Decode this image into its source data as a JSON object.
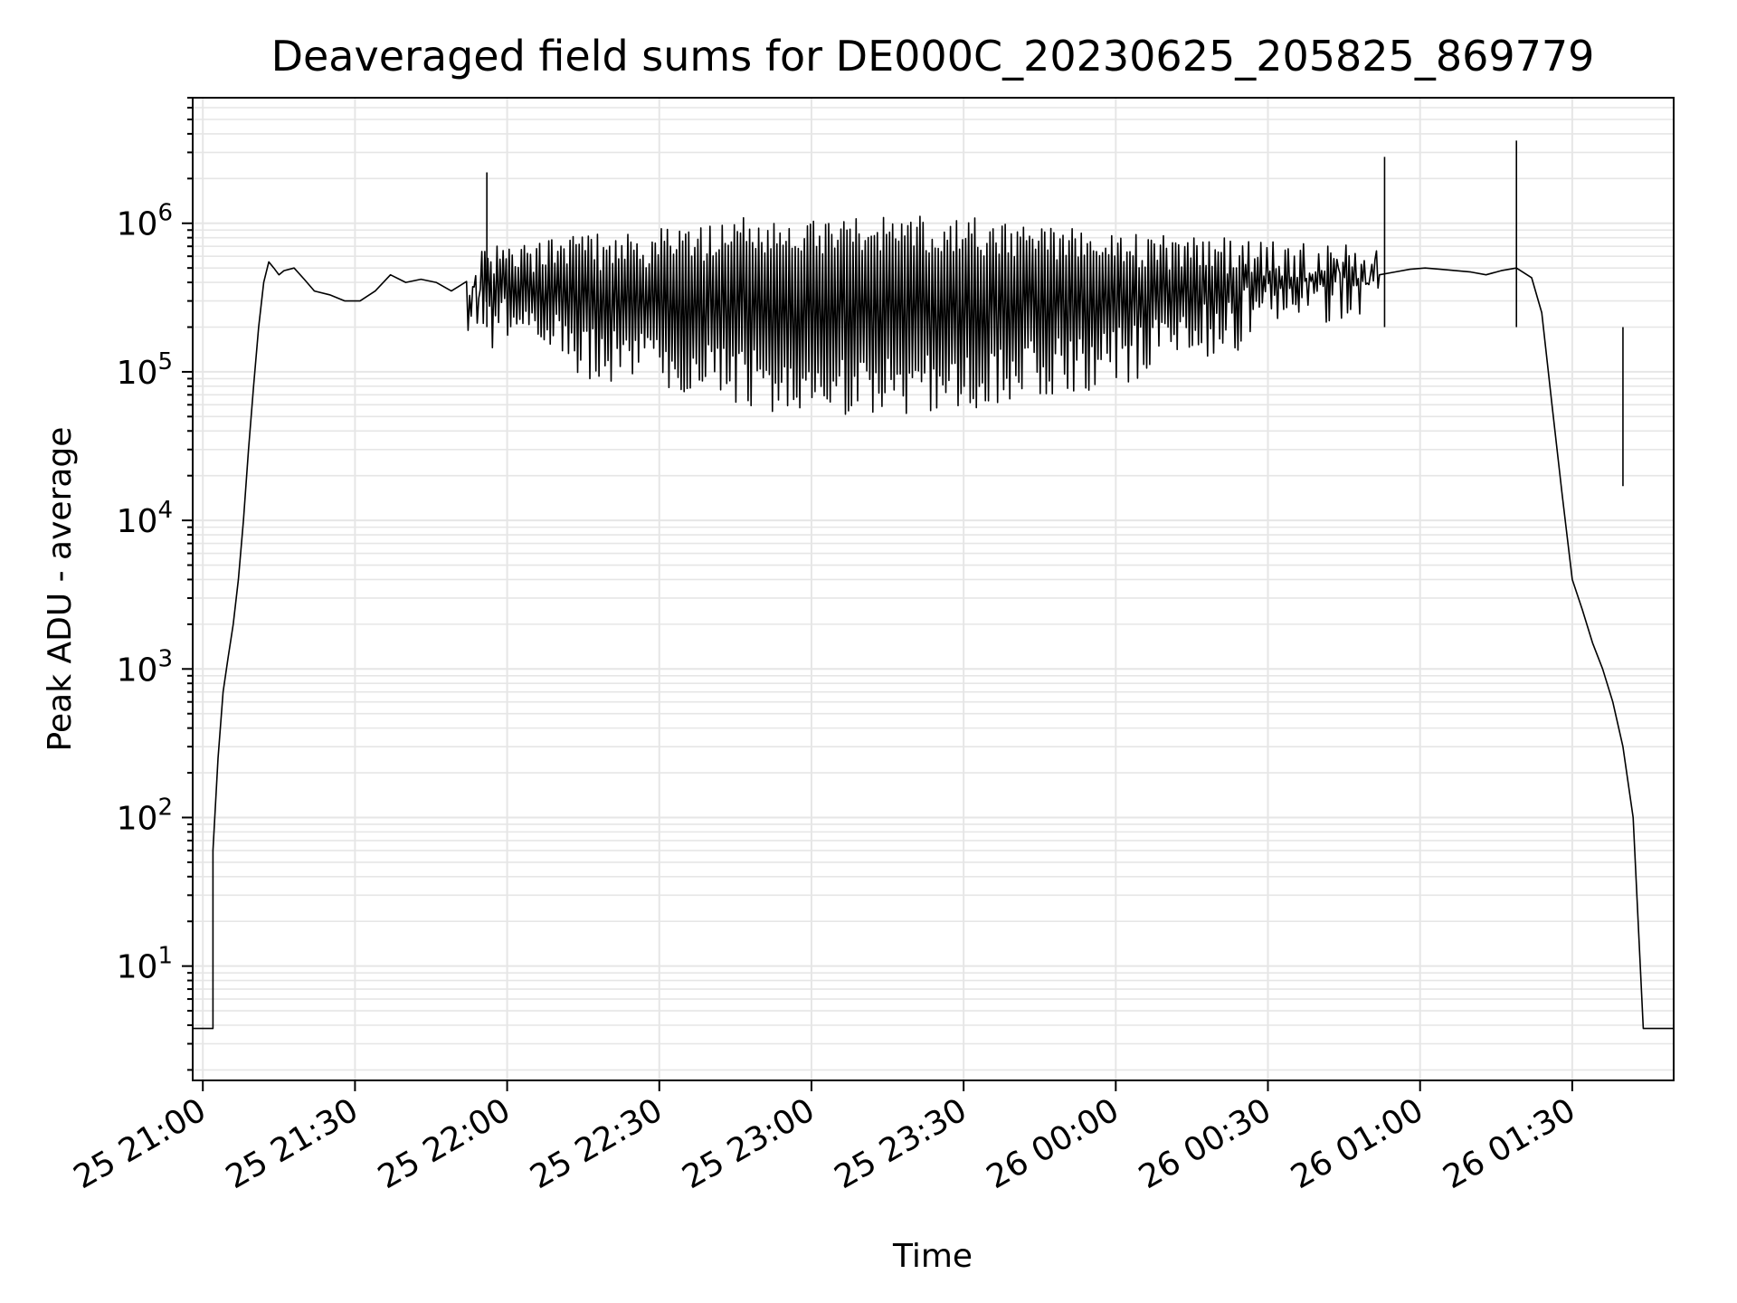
{
  "chart_data": {
    "type": "line",
    "title": "Deaveraged field sums for DE000C_20230625_205825_869779",
    "xlabel": "Time",
    "ylabel": "Peak ADU - average",
    "y_scale": "log",
    "ylim": [
      1.7,
      7000000
    ],
    "xlim": [
      "2023-06-25 20:58",
      "2023-06-26 01:50"
    ],
    "grid": true,
    "line_color": "#000000",
    "grid_color": "#e6e6e6",
    "x_ticks": [
      {
        "value": "2023-06-25 21:00",
        "label": "25 21:00"
      },
      {
        "value": "2023-06-25 21:30",
        "label": "25 21:30"
      },
      {
        "value": "2023-06-25 22:00",
        "label": "25 22:00"
      },
      {
        "value": "2023-06-25 22:30",
        "label": "25 22:30"
      },
      {
        "value": "2023-06-25 23:00",
        "label": "25 23:00"
      },
      {
        "value": "2023-06-25 23:30",
        "label": "25 23:30"
      },
      {
        "value": "2023-06-26 00:00",
        "label": "26 00:00"
      },
      {
        "value": "2023-06-26 00:30",
        "label": "26 00:30"
      },
      {
        "value": "2023-06-26 01:00",
        "label": "26 01:00"
      },
      {
        "value": "2023-06-26 01:30",
        "label": "26 01:30"
      }
    ],
    "y_ticks": [
      {
        "value": 10,
        "base": "10",
        "exp": "1"
      },
      {
        "value": 100,
        "base": "10",
        "exp": "2"
      },
      {
        "value": 1000,
        "base": "10",
        "exp": "3"
      },
      {
        "value": 10000,
        "base": "10",
        "exp": "4"
      },
      {
        "value": 100000,
        "base": "10",
        "exp": "5"
      },
      {
        "value": 1000000,
        "base": "10",
        "exp": "6"
      }
    ],
    "series": [
      {
        "x": [
          "2023-06-25 20:58",
          "2023-06-25 21:02",
          "2023-06-25 21:02",
          "2023-06-25 21:03",
          "2023-06-25 21:04",
          "2023-06-25 21:05",
          "2023-06-25 21:06",
          "2023-06-25 21:07",
          "2023-06-25 21:08",
          "2023-06-25 21:09",
          "2023-06-25 21:10",
          "2023-06-25 21:11",
          "2023-06-25 21:12",
          "2023-06-25 21:13",
          "2023-06-25 21:14",
          "2023-06-25 21:15",
          "2023-06-25 21:16",
          "2023-06-25 21:18",
          "2023-06-25 21:20",
          "2023-06-25 21:22",
          "2023-06-25 21:25",
          "2023-06-25 21:28",
          "2023-06-25 21:31",
          "2023-06-25 21:34",
          "2023-06-25 21:37",
          "2023-06-25 21:40",
          "2023-06-25 21:43",
          "2023-06-25 21:46",
          "2023-06-25 21:49",
          "2023-06-25 21:52",
          "2023-06-25 21:55",
          "2023-06-25 21:58",
          "2023-06-25 22:01",
          "2023-06-25 22:04",
          "2023-06-25 22:07",
          "2023-06-25 22:10",
          "2023-06-25 22:13",
          "2023-06-25 22:16",
          "2023-06-25 22:19",
          "2023-06-25 22:22",
          "2023-06-25 22:25",
          "2023-06-25 22:28",
          "2023-06-25 22:31",
          "2023-06-25 22:34",
          "2023-06-25 22:37",
          "2023-06-25 22:40",
          "2023-06-25 22:43",
          "2023-06-25 22:46",
          "2023-06-25 22:49",
          "2023-06-25 22:52",
          "2023-06-25 22:55",
          "2023-06-25 22:58",
          "2023-06-25 23:01",
          "2023-06-25 23:04",
          "2023-06-25 23:07",
          "2023-06-25 23:10",
          "2023-06-25 23:13",
          "2023-06-25 23:16",
          "2023-06-25 23:19",
          "2023-06-25 23:22",
          "2023-06-25 23:25",
          "2023-06-25 23:28",
          "2023-06-25 23:31",
          "2023-06-25 23:34",
          "2023-06-25 23:37",
          "2023-06-25 23:40",
          "2023-06-25 23:43",
          "2023-06-25 23:46",
          "2023-06-25 23:49",
          "2023-06-25 23:52",
          "2023-06-25 23:55",
          "2023-06-25 23:58",
          "2023-06-26 00:01",
          "2023-06-26 00:04",
          "2023-06-26 00:07",
          "2023-06-26 00:10",
          "2023-06-26 00:13",
          "2023-06-26 00:16",
          "2023-06-26 00:19",
          "2023-06-26 00:22",
          "2023-06-26 00:25",
          "2023-06-26 00:28",
          "2023-06-26 00:31",
          "2023-06-26 00:34",
          "2023-06-26 00:37",
          "2023-06-26 00:40",
          "2023-06-26 00:43",
          "2023-06-26 00:46",
          "2023-06-26 00:49",
          "2023-06-26 00:52",
          "2023-06-26 00:55",
          "2023-06-26 00:58",
          "2023-06-26 01:01",
          "2023-06-26 01:04",
          "2023-06-26 01:07",
          "2023-06-26 01:10",
          "2023-06-26 01:13",
          "2023-06-26 01:16",
          "2023-06-26 01:19",
          "2023-06-26 01:22",
          "2023-06-26 01:24",
          "2023-06-26 01:26",
          "2023-06-26 01:28",
          "2023-06-26 01:30",
          "2023-06-26 01:32",
          "2023-06-26 01:34",
          "2023-06-26 01:36",
          "2023-06-26 01:38",
          "2023-06-26 01:40",
          "2023-06-26 01:42",
          "2023-06-26 01:44",
          "2023-06-26 01:45",
          "2023-06-26 01:46",
          "2023-06-26 01:50"
        ],
        "y": [
          3.8,
          3.8,
          60,
          250,
          700,
          1200,
          2000,
          4000,
          10000,
          30000,
          80000,
          200000,
          400000,
          550000,
          500000,
          450000,
          480000,
          500000,
          420000,
          350000,
          330000,
          300000,
          300000,
          350000,
          450000,
          400000,
          420000,
          400000,
          350000,
          380000,
          300000,
          250000,
          300000,
          200000,
          350000,
          250000,
          300000,
          200000,
          320000,
          250000,
          300000,
          200000,
          350000,
          250000,
          300000,
          200000,
          300000,
          250000,
          300000,
          200000,
          280000,
          220000,
          300000,
          200000,
          280000,
          210000,
          290000,
          200000,
          300000,
          220000,
          280000,
          210000,
          300000,
          200000,
          290000,
          220000,
          280000,
          210000,
          290000,
          230000,
          280000,
          220000,
          300000,
          250000,
          290000,
          260000,
          280000,
          270000,
          300000,
          310000,
          300000,
          320000,
          350000,
          330000,
          360000,
          380000,
          400000,
          410000,
          430000,
          450000,
          470000,
          490000,
          500000,
          490000,
          480000,
          470000,
          450000,
          480000,
          500000,
          430000,
          250000,
          60000,
          15000,
          4000,
          2500,
          1500,
          1000,
          600,
          300,
          100,
          3.8,
          3.8,
          3.8,
          3.8
        ],
        "y_high": [
          null,
          null,
          null,
          null,
          null,
          null,
          null,
          null,
          null,
          null,
          null,
          null,
          null,
          null,
          null,
          null,
          null,
          null,
          null,
          null,
          null,
          null,
          null,
          null,
          null,
          null,
          null,
          null,
          null,
          500000,
          650000,
          800000,
          900000,
          850000,
          820000,
          800000,
          820000,
          850000,
          870000,
          880000,
          900000,
          920000,
          950000,
          980000,
          1000000,
          1050000,
          1080000,
          1100000,
          1100000,
          1120000,
          1100000,
          1080000,
          1100000,
          1120000,
          1100000,
          1080000,
          1100000,
          1100000,
          1120000,
          1100000,
          1080000,
          1100000,
          1100000,
          1080000,
          1050000,
          1020000,
          1000000,
          980000,
          950000,
          920000,
          900000,
          880000,
          860000,
          850000,
          840000,
          830000,
          820000,
          820000,
          810000,
          800000,
          800000,
          790000,
          780000,
          770000,
          760000,
          750000,
          740000,
          720000,
          700000,
          null,
          null,
          null,
          null,
          null,
          null,
          null,
          null,
          null,
          null,
          null,
          null,
          null,
          null,
          null,
          null,
          null,
          null,
          null,
          null,
          null,
          null,
          null,
          null,
          null
        ],
        "y_low": [
          null,
          null,
          null,
          null,
          null,
          null,
          null,
          null,
          null,
          null,
          null,
          null,
          null,
          null,
          null,
          null,
          null,
          null,
          null,
          null,
          null,
          null,
          null,
          null,
          null,
          null,
          null,
          null,
          null,
          150000,
          140000,
          130000,
          120000,
          110000,
          100000,
          95000,
          90000,
          85000,
          80000,
          78000,
          75000,
          72000,
          70000,
          68000,
          65000,
          62000,
          60000,
          58000,
          55000,
          53000,
          52000,
          51000,
          50000,
          50000,
          49000,
          49000,
          50000,
          50000,
          51000,
          52000,
          53000,
          55000,
          57000,
          60000,
          62000,
          65000,
          68000,
          70000,
          72000,
          75000,
          78000,
          80000,
          85000,
          90000,
          95000,
          100000,
          110000,
          120000,
          130000,
          140000,
          150000,
          160000,
          170000,
          180000,
          190000,
          200000,
          210000,
          220000,
          230000,
          null,
          null,
          null,
          null,
          null,
          null,
          null,
          null,
          null,
          null,
          null,
          null,
          null,
          null,
          null,
          null,
          null,
          null,
          null,
          null,
          null,
          null,
          null,
          null,
          null
        ]
      }
    ],
    "annotations_spikes": [
      {
        "x": "2023-06-25 21:56",
        "y": 2200000
      },
      {
        "x": "2023-06-26 00:53",
        "y": 2800000
      },
      {
        "x": "2023-06-26 01:19",
        "y": 3600000
      },
      {
        "x": "2023-06-26 01:40",
        "y": 17000
      }
    ]
  }
}
